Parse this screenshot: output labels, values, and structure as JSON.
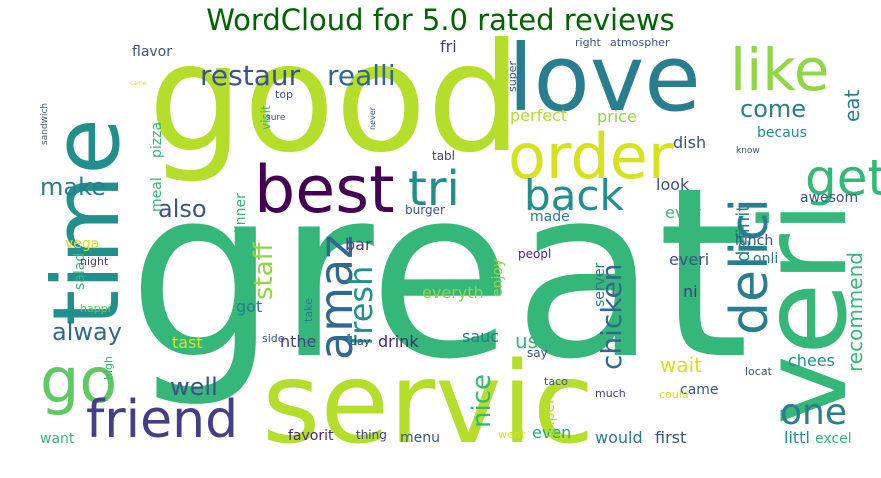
{
  "title": "WordCloud for 5.0 rated reviews",
  "palette": {
    "title_color": "#006400",
    "yellow": "#d6e21f",
    "lime": "#b5de2b",
    "lightgreen": "#8fd744",
    "green": "#5ec962",
    "seagreen": "#35b779",
    "teal": "#26a784",
    "tealblue": "#21908d",
    "blueteal": "#287d8e",
    "blue": "#31688e",
    "slate": "#3b528b",
    "indigo": "#433e85",
    "purple": "#482576",
    "darkpurple": "#440154"
  },
  "words": [
    {
      "text": "great",
      "color": "seagreen",
      "rotate": false
    },
    {
      "text": "good",
      "color": "lime",
      "rotate": false
    },
    {
      "text": "servic",
      "color": "lime",
      "rotate": false
    },
    {
      "text": "time",
      "color": "tealblue",
      "rotate": true
    },
    {
      "text": "veri",
      "color": "seagreen",
      "rotate": true
    },
    {
      "text": "love",
      "color": "blueteal",
      "rotate": false
    },
    {
      "text": "order",
      "color": "yellow",
      "rotate": false
    },
    {
      "text": "best",
      "color": "darkpurple",
      "rotate": false
    },
    {
      "text": "like",
      "color": "lightgreen",
      "rotate": false
    },
    {
      "text": "go",
      "color": "green",
      "rotate": false
    },
    {
      "text": "tri",
      "color": "tealblue",
      "rotate": false
    },
    {
      "text": "back",
      "color": "tealblue",
      "rotate": false
    },
    {
      "text": "get",
      "color": "seagreen",
      "rotate": false
    },
    {
      "text": "friend",
      "color": "indigo",
      "rotate": false
    },
    {
      "text": "delici",
      "color": "blueteal",
      "rotate": true
    },
    {
      "text": "one",
      "color": "blueteal",
      "rotate": false
    },
    {
      "text": "amaz",
      "color": "blue",
      "rotate": true
    },
    {
      "text": "restaur",
      "color": "slate",
      "rotate": false
    },
    {
      "text": "realli",
      "color": "blue",
      "rotate": false
    },
    {
      "text": "fresh",
      "color": "tealblue",
      "rotate": true
    },
    {
      "text": "staff",
      "color": "lightgreen",
      "rotate": true
    },
    {
      "text": "alway",
      "color": "blue",
      "rotate": false
    },
    {
      "text": "come",
      "color": "blueteal",
      "rotate": false
    },
    {
      "text": "make",
      "color": "blueteal",
      "rotate": false
    },
    {
      "text": "also",
      "color": "slate",
      "rotate": false
    },
    {
      "text": "well",
      "color": "slate",
      "rotate": false
    },
    {
      "text": "chicken",
      "color": "blue",
      "rotate": true
    },
    {
      "text": "recommend",
      "color": "seagreen",
      "rotate": true
    },
    {
      "text": "definit",
      "color": "blueteal",
      "rotate": true
    },
    {
      "text": "eat",
      "color": "blueteal",
      "rotate": true
    },
    {
      "text": "nice",
      "color": "seagreen",
      "rotate": true
    },
    {
      "text": "flavor",
      "color": "slate",
      "rotate": false
    },
    {
      "text": "fri",
      "color": "indigo",
      "rotate": false
    },
    {
      "text": "perfect",
      "color": "lime",
      "rotate": false
    },
    {
      "text": "price",
      "color": "lightgreen",
      "rotate": false
    },
    {
      "text": "dish",
      "color": "slate",
      "rotate": false
    },
    {
      "text": "becaus",
      "color": "tealblue",
      "rotate": false
    },
    {
      "text": "look",
      "color": "slate",
      "rotate": false
    },
    {
      "text": "awesom",
      "color": "slate",
      "rotate": false
    },
    {
      "text": "ever",
      "color": "seagreen",
      "rotate": false
    },
    {
      "text": "made",
      "color": "blueteal",
      "rotate": false
    },
    {
      "text": "lunch",
      "color": "slate",
      "rotate": false
    },
    {
      "text": "onli",
      "color": "blueteal",
      "rotate": false
    },
    {
      "text": "everi",
      "color": "slate",
      "rotate": false
    },
    {
      "text": "ni",
      "color": "indigo",
      "rotate": false
    },
    {
      "text": "everyth",
      "color": "lightgreen",
      "rotate": false
    },
    {
      "text": "sauc",
      "color": "blueteal",
      "rotate": false
    },
    {
      "text": "drink",
      "color": "purple",
      "rotate": false
    },
    {
      "text": "nthe",
      "color": "indigo",
      "rotate": false
    },
    {
      "text": "tast",
      "color": "yellow",
      "rotate": false
    },
    {
      "text": "got",
      "color": "blueteal",
      "rotate": false
    },
    {
      "text": "bar",
      "color": "indigo",
      "rotate": false
    },
    {
      "text": "enjoy",
      "color": "lightgreen",
      "rotate": true
    },
    {
      "text": "us",
      "color": "seagreen",
      "rotate": false
    },
    {
      "text": "wait",
      "color": "yellow",
      "rotate": false
    },
    {
      "text": "chees",
      "color": "tealblue",
      "rotate": false
    },
    {
      "text": "server",
      "color": "blueteal",
      "rotate": true
    },
    {
      "text": "even",
      "color": "teal",
      "rotate": false
    },
    {
      "text": "would",
      "color": "blueteal",
      "rotate": false
    },
    {
      "text": "first",
      "color": "slate",
      "rotate": false
    },
    {
      "text": "came",
      "color": "slate",
      "rotate": false
    },
    {
      "text": "littl",
      "color": "tealblue",
      "rotate": false
    },
    {
      "text": "excel",
      "color": "seagreen",
      "rotate": false
    },
    {
      "text": "favorit",
      "color": "purple",
      "rotate": false
    },
    {
      "text": "menu",
      "color": "slate",
      "rotate": false
    },
    {
      "text": "thing",
      "color": "indigo",
      "rotate": false
    },
    {
      "text": "want",
      "color": "seagreen",
      "rotate": false
    },
    {
      "text": "experi",
      "color": "lime",
      "rotate": true
    },
    {
      "text": "vega",
      "color": "yellow",
      "rotate": false
    },
    {
      "text": "meal",
      "color": "seagreen",
      "rotate": true
    },
    {
      "text": "pizza",
      "color": "seagreen",
      "rotate": true
    },
    {
      "text": "salad",
      "color": "seagreen",
      "rotate": true
    },
    {
      "text": "dinner",
      "color": "seagreen",
      "rotate": true
    },
    {
      "text": "visit",
      "color": "seagreen",
      "rotate": true
    },
    {
      "text": "burger",
      "color": "slate",
      "rotate": false
    },
    {
      "text": "tabl",
      "color": "indigo",
      "rotate": false
    },
    {
      "text": "peopl",
      "color": "purple",
      "rotate": false
    },
    {
      "text": "say",
      "color": "slate",
      "rotate": false
    },
    {
      "text": "take",
      "color": "blueteal",
      "rotate": true
    },
    {
      "text": "day",
      "color": "indigo",
      "rotate": false
    },
    {
      "text": "side",
      "color": "slate",
      "rotate": false
    },
    {
      "text": "night",
      "color": "indigo",
      "rotate": false
    },
    {
      "text": "happi",
      "color": "green",
      "rotate": false
    },
    {
      "text": "high",
      "color": "seagreen",
      "rotate": true
    },
    {
      "text": "taco",
      "color": "slate",
      "rotate": false
    },
    {
      "text": "much",
      "color": "indigo",
      "rotate": false
    },
    {
      "text": "could",
      "color": "yellow",
      "rotate": false
    },
    {
      "text": "went",
      "color": "yellow",
      "rotate": false
    },
    {
      "text": "locat",
      "color": "slate",
      "rotate": false
    },
    {
      "text": "know",
      "color": "slate",
      "rotate": false
    },
    {
      "text": "top",
      "color": "slate",
      "rotate": false
    },
    {
      "text": "sure",
      "color": "slate",
      "rotate": false
    },
    {
      "text": "never",
      "color": "slate",
      "rotate": true
    },
    {
      "text": "super",
      "color": "slate",
      "rotate": true
    },
    {
      "text": "right",
      "color": "slate",
      "rotate": false
    },
    {
      "text": "atmospher",
      "color": "slate",
      "rotate": false
    },
    {
      "text": "sandwich",
      "color": "slate",
      "rotate": true
    },
    {
      "text": "came",
      "color": "yellow",
      "rotate": false
    }
  ]
}
